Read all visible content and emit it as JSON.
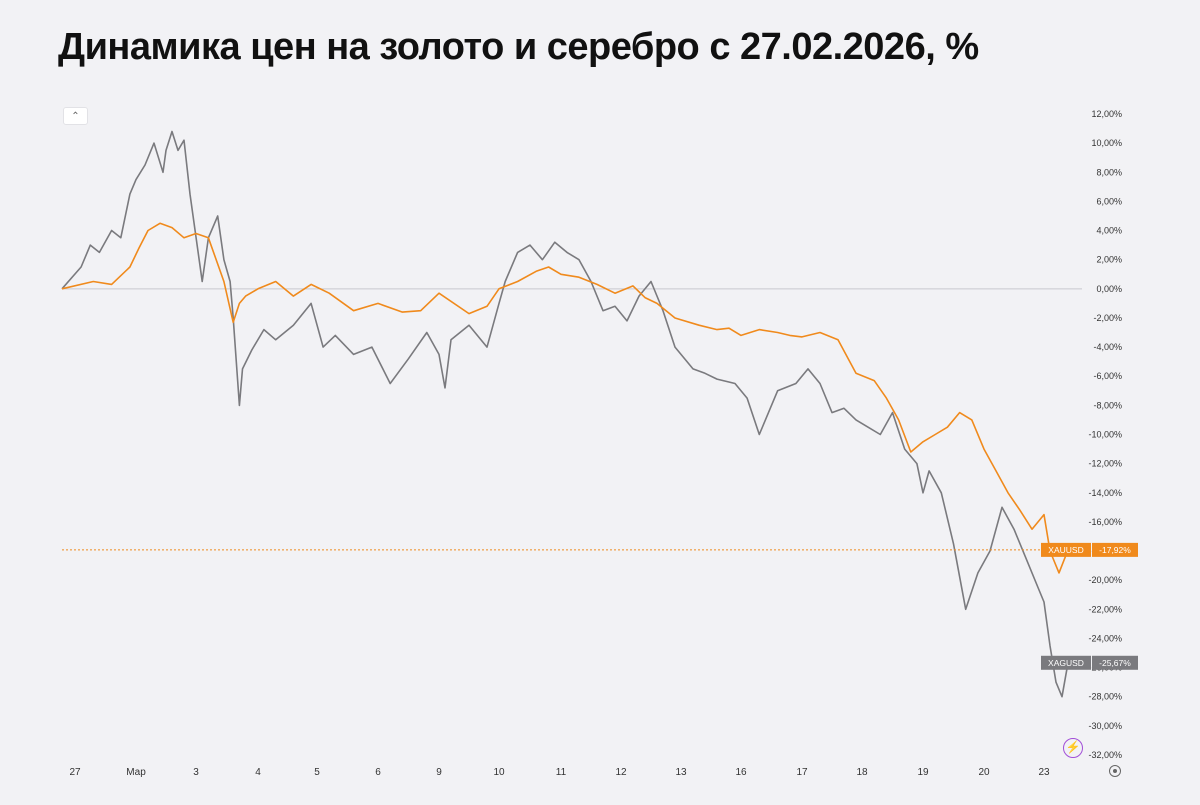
{
  "title": "Динамика цен на золото и серебро с 27.02.2026, %",
  "icons": {
    "collapse": "chevron-up-icon",
    "settings": "gear-icon",
    "alert": "lightning-icon"
  },
  "collapse_glyph": "⌃",
  "alert_glyph": "⚡",
  "chart_data": {
    "type": "line",
    "title": "Динамика цен на золото и серебро с 27.02.2026, %",
    "ylim": [
      -32,
      12
    ],
    "y_ticks": [
      "12,00%",
      "10,00%",
      "8,00%",
      "6,00%",
      "4,00%",
      "2,00%",
      "0,00%",
      "-2,00%",
      "-4,00%",
      "-6,00%",
      "-8,00%",
      "-10,00%",
      "-12,00%",
      "-14,00%",
      "-16,00%",
      "-18,00%",
      "-20,00%",
      "-22,00%",
      "-24,00%",
      "-26,00%",
      "-28,00%",
      "-30,00%",
      "-32,00%"
    ],
    "x_ticks": [
      "27",
      "Мар",
      "3",
      "4",
      "5",
      "6",
      "9",
      "10",
      "11",
      "12",
      "13",
      "16",
      "17",
      "18",
      "19",
      "20",
      "23"
    ],
    "grid": false,
    "zero_line": true,
    "series": [
      {
        "name": "XAUUSD",
        "color": "#f08a1c",
        "last_label": "XAUUSD",
        "last_value_label": "-17,92%",
        "last_value": -17.92,
        "x": [
          0,
          0.3,
          0.6,
          0.9,
          1.05,
          1.2,
          1.4,
          1.6,
          1.8,
          2.0,
          2.2,
          2.45,
          2.6,
          2.7,
          2.8,
          3.0,
          3.3,
          3.6,
          3.9,
          4.2,
          4.6,
          5.0,
          5.4,
          5.7,
          6.0,
          6.5,
          6.8,
          7.0,
          7.3,
          7.6,
          7.8,
          8.0,
          8.3,
          8.6,
          8.9,
          9.2,
          9.4,
          9.6,
          9.9,
          10.3,
          10.6,
          10.8,
          11.0,
          11.3,
          11.6,
          11.8,
          12.0,
          12.3,
          12.6,
          12.9,
          13.2,
          13.4,
          13.6,
          13.8,
          14.0,
          14.2,
          14.4,
          14.6,
          14.8,
          15.0,
          15.2,
          15.4,
          15.6,
          15.8,
          16.0,
          16.1,
          16.25,
          16.4
        ],
        "values": [
          0.0,
          0.5,
          0.3,
          1.5,
          2.8,
          4.0,
          4.5,
          4.2,
          3.5,
          3.8,
          3.5,
          0.5,
          -2.3,
          -1.0,
          -0.5,
          0.0,
          0.5,
          -0.5,
          0.3,
          -0.3,
          -1.5,
          -1.0,
          -1.6,
          -1.5,
          -0.3,
          -1.7,
          -1.2,
          0.0,
          0.5,
          1.2,
          1.5,
          1.0,
          0.8,
          0.3,
          -0.3,
          0.2,
          -0.6,
          -1.0,
          -2.0,
          -2.5,
          -2.8,
          -2.7,
          -3.2,
          -2.8,
          -3.0,
          -3.2,
          -3.3,
          -3.0,
          -3.5,
          -5.8,
          -6.3,
          -7.5,
          -9.0,
          -11.2,
          -10.5,
          -10.0,
          -9.5,
          -8.5,
          -9.0,
          -11.0,
          -12.5,
          -14.0,
          -15.2,
          -16.5,
          -15.5,
          -18.0,
          -19.5,
          -17.92
        ]
      },
      {
        "name": "XAGUSD",
        "color": "#7a7a7e",
        "last_label": "XAGUSD",
        "last_value_label": "-25,67%",
        "last_value": -25.67,
        "x": [
          0,
          0.1,
          0.25,
          0.4,
          0.6,
          0.75,
          0.9,
          1.0,
          1.15,
          1.3,
          1.45,
          1.5,
          1.6,
          1.7,
          1.8,
          1.9,
          2.1,
          2.2,
          2.35,
          2.45,
          2.55,
          2.6,
          2.7,
          2.75,
          2.9,
          3.1,
          3.3,
          3.6,
          3.9,
          4.1,
          4.3,
          4.6,
          4.9,
          5.2,
          5.5,
          5.8,
          6.0,
          6.1,
          6.2,
          6.5,
          6.8,
          7.0,
          7.1,
          7.3,
          7.5,
          7.7,
          7.9,
          8.1,
          8.3,
          8.5,
          8.7,
          8.9,
          9.1,
          9.3,
          9.5,
          9.7,
          9.9,
          10.2,
          10.4,
          10.6,
          10.9,
          11.1,
          11.3,
          11.6,
          11.9,
          12.1,
          12.3,
          12.5,
          12.7,
          12.9,
          13.1,
          13.3,
          13.5,
          13.7,
          13.9,
          14.0,
          14.1,
          14.3,
          14.5,
          14.7,
          14.9,
          15.1,
          15.3,
          15.5,
          15.7,
          15.9,
          16.0,
          16.1,
          16.2,
          16.3,
          16.4
        ],
        "values": [
          0.0,
          1.5,
          3.0,
          2.5,
          4.0,
          3.5,
          6.5,
          7.5,
          8.5,
          10.0,
          8.0,
          9.5,
          10.8,
          9.5,
          10.2,
          6.5,
          0.5,
          3.5,
          5.0,
          2.0,
          0.5,
          -2.0,
          -8.0,
          -5.5,
          -4.2,
          -2.8,
          -3.5,
          -2.5,
          -1.0,
          -4.0,
          -3.2,
          -4.5,
          -4.0,
          -6.5,
          -4.8,
          -3.0,
          -4.5,
          -6.8,
          -3.5,
          -2.5,
          -4.0,
          -1.0,
          0.5,
          2.5,
          3.0,
          2.0,
          3.2,
          2.5,
          2.0,
          0.5,
          -1.5,
          -1.2,
          -2.2,
          -0.5,
          0.5,
          -1.5,
          -4.0,
          -5.5,
          -5.8,
          -6.2,
          -6.5,
          -7.5,
          -10.0,
          -7.0,
          -6.5,
          -5.5,
          -6.5,
          -8.5,
          -8.2,
          -9.0,
          -9.5,
          -10.0,
          -8.5,
          -11.0,
          -12.0,
          -14.0,
          -12.5,
          -14.0,
          -17.5,
          -22.0,
          -19.5,
          -18.0,
          -15.0,
          -16.5,
          -18.5,
          -20.5,
          -21.5,
          -24.5,
          -27.0,
          -28.0,
          -25.67
        ]
      }
    ]
  }
}
